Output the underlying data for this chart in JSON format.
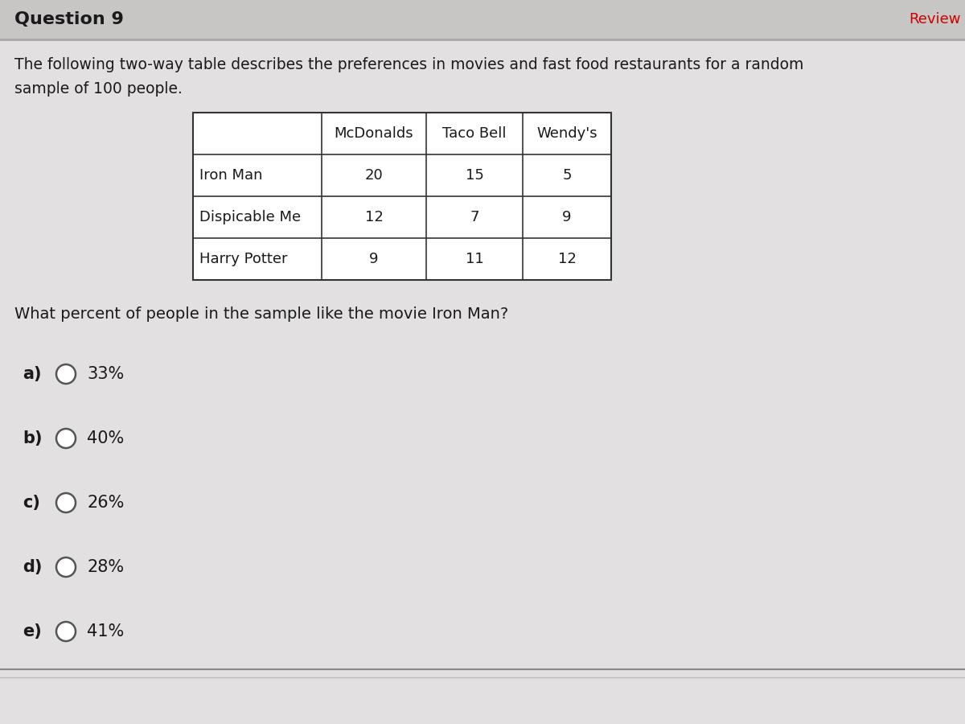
{
  "question_number": "Question 9",
  "description_line1": "The following two-way table describes the preferences in movies and fast food restaurants for a random",
  "description_line2": "sample of 100 people.",
  "table_headers": [
    "",
    "McDonalds",
    "Taco Bell",
    "Wendy's"
  ],
  "table_rows": [
    [
      "Iron Man",
      "20",
      "15",
      "5"
    ],
    [
      "Dispicable Me",
      "12",
      "7",
      "9"
    ],
    [
      "Harry Potter",
      "9",
      "11",
      "12"
    ]
  ],
  "question": "What percent of people in the sample like the movie Iron Man?",
  "choices": [
    {
      "label": "a)",
      "text": "33%"
    },
    {
      "label": "b)",
      "text": "40%"
    },
    {
      "label": "c)",
      "text": "26%"
    },
    {
      "label": "d)",
      "text": "28%"
    },
    {
      "label": "e)",
      "text": "41%"
    }
  ],
  "bg_color": "#e2e0e0",
  "title_bar_color": "#c8c5c5",
  "separator_color": "#aaaaaa",
  "text_color": "#1a1a1a",
  "review_color": "#cc0000",
  "table_border_color": "#333333",
  "bottom_bar_color": "#b0b0b0",
  "circle_color": "#555555",
  "white": "#ffffff"
}
